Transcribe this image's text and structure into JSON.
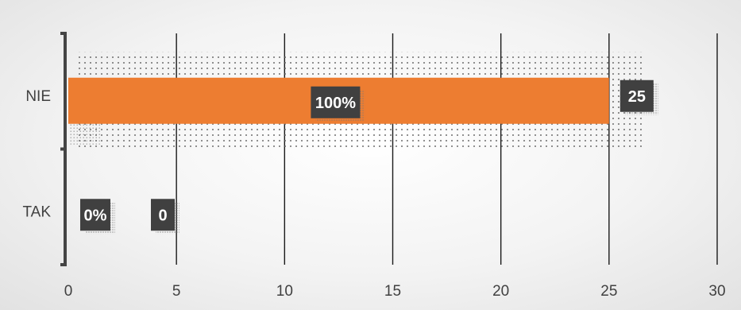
{
  "chart_data": {
    "type": "bar",
    "orientation": "horizontal",
    "categories": [
      "NIE",
      "TAK"
    ],
    "values": [
      25,
      0
    ],
    "percent_labels": [
      "100%",
      "0%"
    ],
    "value_labels": [
      "25",
      "0"
    ],
    "xlim": [
      0,
      30
    ],
    "x_ticks": [
      "0",
      "5",
      "10",
      "15",
      "20",
      "25",
      "30"
    ],
    "grid": true,
    "bar_color": "#ED7D31",
    "label_box_color": "#404040"
  }
}
